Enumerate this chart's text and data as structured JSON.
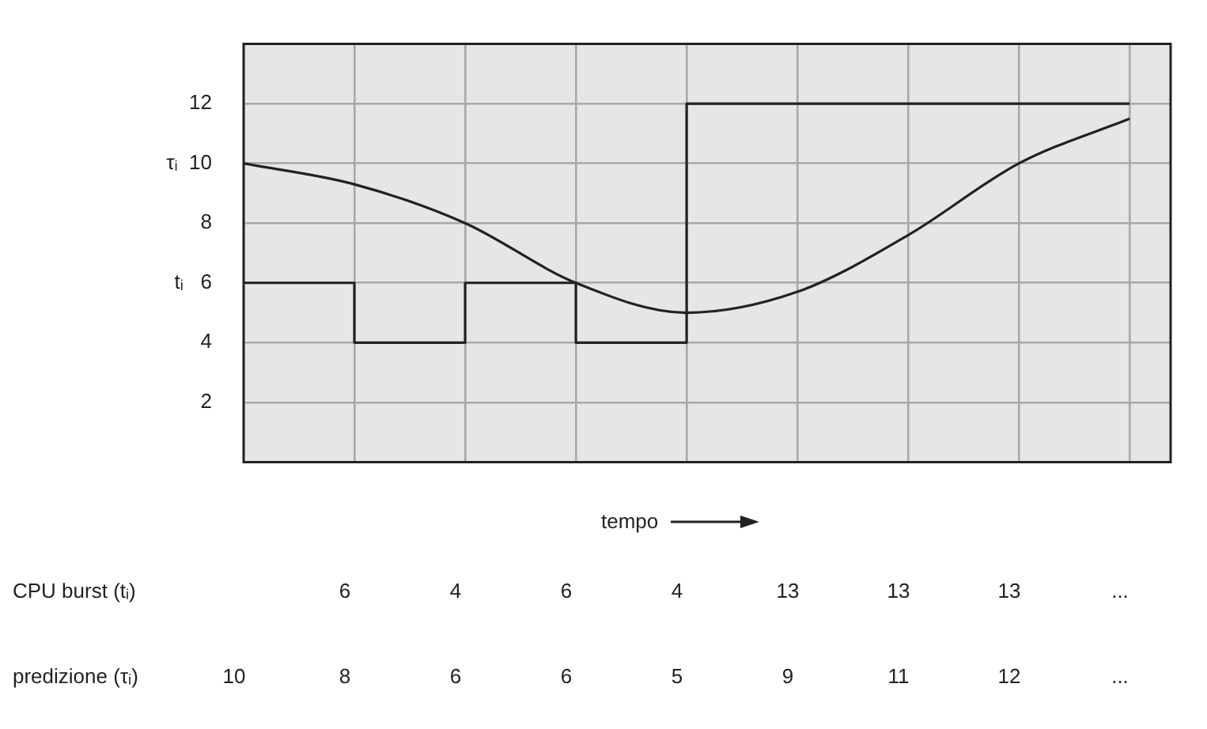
{
  "chart_data": [
    {
      "type": "line",
      "xlabel": "tempo",
      "categories": [
        null,
        null,
        null,
        null,
        null,
        null,
        null,
        null,
        null
      ],
      "ylim": [
        0,
        14
      ],
      "yticks": [
        2,
        4,
        {
          "value": 6,
          "label": "tᵢ   6"
        },
        8,
        {
          "value": 10,
          "label": "τᵢ  10"
        },
        12
      ],
      "tick_labels": "y",
      "grid": true,
      "legend": false,
      "marker": "none",
      "line_style": "solid",
      "series": [
        {
          "type": "step",
          "color": "#222222",
          "values": [
            6,
            4,
            6,
            4,
            12,
            12,
            12,
            12,
            12
          ]
        },
        {
          "type": "line",
          "color": "#222222",
          "values": [
            10,
            9.3,
            8,
            6,
            5,
            5.7,
            7.6,
            10,
            11.5
          ]
        }
      ]
    },
    {
      "type": "other",
      "annotations": [
        "CPU burst (tᵢ)",
        "6",
        "4",
        "6",
        "4",
        "13",
        "13",
        "13",
        "..."
      ]
    },
    {
      "type": "other",
      "annotations": [
        "predizione (τᵢ)",
        "10",
        "8",
        "6",
        "6",
        "5",
        "9",
        "11",
        "12",
        "..."
      ]
    }
  ]
}
